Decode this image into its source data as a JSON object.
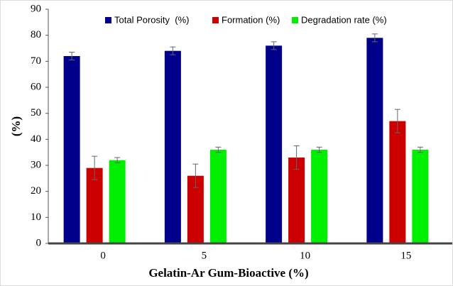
{
  "chart_data": {
    "type": "bar",
    "x_label": "Gelatin-Ar Gum-Bioactive (%)",
    "y_label": "(%)",
    "categories": [
      "0",
      "5",
      "10",
      "15"
    ],
    "series": [
      {
        "name": "Total Porosity  (%)",
        "color": "#00008b",
        "values": [
          72,
          74,
          76,
          79
        ],
        "errors": [
          1.5,
          1.5,
          1.5,
          1.5
        ]
      },
      {
        "name": "Formation (%)",
        "color": "#cc0000",
        "values": [
          29,
          26,
          33,
          47
        ],
        "errors": [
          4.5,
          4.5,
          4.5,
          4.5
        ]
      },
      {
        "name": "Degradation rate (%)",
        "color": "#00ee00",
        "values": [
          32,
          36,
          36,
          36
        ],
        "errors": [
          1,
          1,
          1,
          1
        ]
      }
    ],
    "ylim": [
      0,
      90
    ],
    "yticks": [
      0,
      10,
      20,
      30,
      40,
      50,
      60,
      70,
      80,
      90
    ],
    "legend": "top"
  }
}
